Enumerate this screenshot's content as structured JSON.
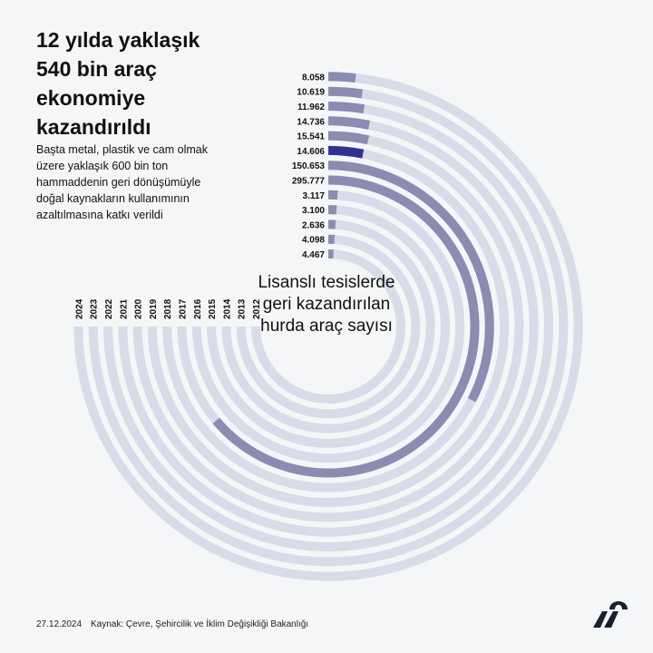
{
  "header": {
    "title": "12 yılda yaklaşık 540 bin araç ekonomiye kazandırıldı",
    "subtitle": "Başta metal, plastik ve cam olmak üzere yaklaşık 600 bin ton hammaddenin geri dönüşümüyle doğal kaynakların kullanımının azaltılmasına katkı verildi"
  },
  "center_label": "Lisanslı tesislerde geri kazandırılan hurda araç sayısı",
  "footer": {
    "date": "27.12.2024",
    "source": "Kaynak: Çevre, Şehircilik ve İklim Değişikliği Bakanlığı"
  },
  "colors": {
    "background": "#f5f6f8",
    "track": "#d9dce8",
    "bar": "#8a8cb2",
    "highlight": "#2e3391",
    "logo": "#1c1f2e"
  },
  "chart_data": {
    "type": "radial-bar",
    "categories": [
      "2012",
      "2013",
      "2014",
      "2015",
      "2016",
      "2017",
      "2018",
      "2019",
      "2020",
      "2021",
      "2022",
      "2023",
      "2024"
    ],
    "values": [
      4467,
      4098,
      2636,
      3100,
      3117,
      295777,
      150653,
      14606,
      15541,
      14736,
      11962,
      10619,
      8058
    ],
    "value_labels": [
      "4.467",
      "4.098",
      "2.636",
      "3.100",
      "3.117",
      "295.777",
      "150.653",
      "14.606",
      "15.541",
      "14.736",
      "11.962",
      "10.619",
      "8.058"
    ],
    "highlight": "2019"
  }
}
